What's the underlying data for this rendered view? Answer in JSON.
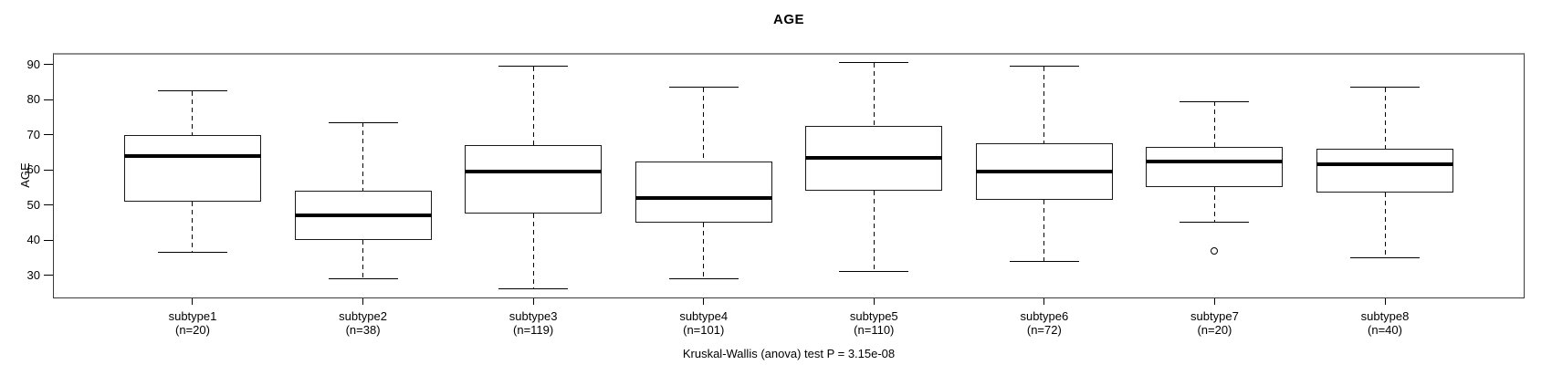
{
  "chart_data": {
    "type": "boxplot",
    "title": "AGE",
    "xlabel": "",
    "ylabel": "AGE",
    "annotation": "Kruskal-Wallis (anova) test P = 3.15e-08",
    "y_ticks": [
      30,
      40,
      50,
      60,
      70,
      80,
      90
    ],
    "y_axis_visible_range": [
      23.4,
      93.3
    ],
    "grid": false,
    "legend": "none",
    "categories": [
      "subtype1",
      "subtype2",
      "subtype3",
      "subtype4",
      "subtype5",
      "subtype6",
      "subtype7",
      "subtype8"
    ],
    "sample_sizes": [
      20,
      38,
      119,
      101,
      110,
      72,
      20,
      40
    ],
    "series": [
      {
        "name": "subtype1",
        "n": 20,
        "whisker_low": 36.5,
        "q1": 51,
        "median": 64,
        "q3": 70,
        "whisker_high": 82.5,
        "outliers": []
      },
      {
        "name": "subtype2",
        "n": 38,
        "whisker_low": 29,
        "q1": 40,
        "median": 47,
        "q3": 54,
        "whisker_high": 73.5,
        "outliers": []
      },
      {
        "name": "subtype3",
        "n": 119,
        "whisker_low": 26,
        "q1": 47.5,
        "median": 59.5,
        "q3": 67,
        "whisker_high": 89.5,
        "outliers": []
      },
      {
        "name": "subtype4",
        "n": 101,
        "whisker_low": 29,
        "q1": 45,
        "median": 52,
        "q3": 62.5,
        "whisker_high": 83.5,
        "outliers": []
      },
      {
        "name": "subtype5",
        "n": 110,
        "whisker_low": 31,
        "q1": 54,
        "median": 63.5,
        "q3": 72.5,
        "whisker_high": 90.5,
        "outliers": []
      },
      {
        "name": "subtype6",
        "n": 72,
        "whisker_low": 34,
        "q1": 51.5,
        "median": 59.5,
        "q3": 67.5,
        "whisker_high": 89.5,
        "outliers": []
      },
      {
        "name": "subtype7",
        "n": 20,
        "whisker_low": 45,
        "q1": 55,
        "median": 62.5,
        "q3": 66.5,
        "whisker_high": 79.5,
        "outliers": [
          37
        ]
      },
      {
        "name": "subtype8",
        "n": 40,
        "whisker_low": 35,
        "q1": 53.5,
        "median": 61.5,
        "q3": 66,
        "whisker_high": 83.5,
        "outliers": []
      }
    ],
    "colors": {
      "line": "#000000",
      "median": "#000000",
      "box_fill": "#ffffff",
      "frame": "#3a3a3a",
      "background": "#ffffff"
    }
  }
}
